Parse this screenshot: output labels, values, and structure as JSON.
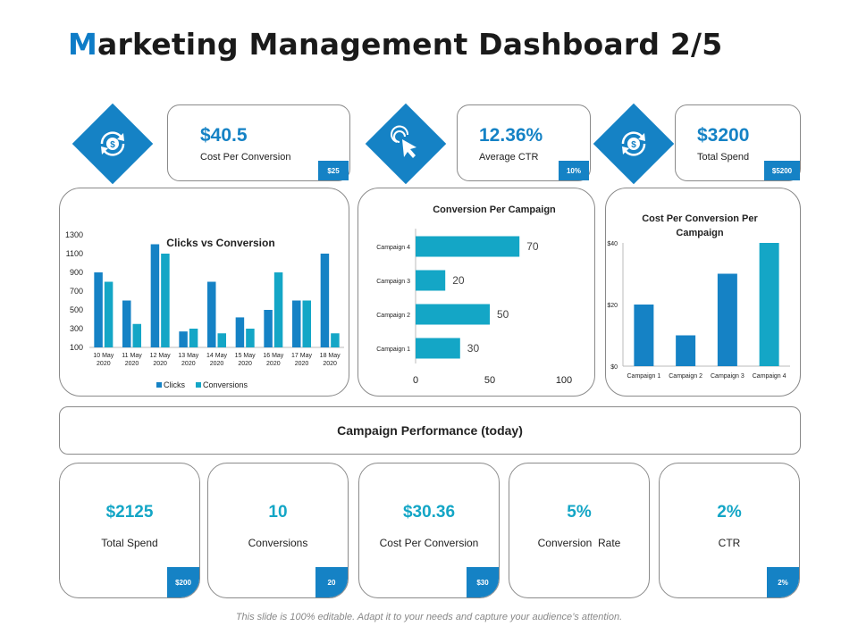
{
  "title": {
    "first_letter": "M",
    "rest": "arketing Management Dashboard 2/5"
  },
  "colors": {
    "primary": "#1582c5",
    "teal": "#14a6c6",
    "border": "#8a8a8a"
  },
  "kpis": [
    {
      "icon": "dollar-refresh-icon",
      "value": "$40.5",
      "label": "Cost Per Conversion",
      "badge": "$25"
    },
    {
      "icon": "cursor-click-icon",
      "value": "12.36%",
      "label": "Average CTR",
      "badge": "10%"
    },
    {
      "icon": "dollar-refresh-icon",
      "value": "$3200",
      "label": "Total Spend",
      "badge": "$5200"
    }
  ],
  "chart_data": [
    {
      "type": "bar",
      "title": "Clicks vs Conversion",
      "categories": [
        "10 May 2020",
        "11 May 2020",
        "12 May 2020",
        "13 May 2020",
        "14 May 2020",
        "15 May 2020",
        "16 May 2020",
        "17 May 2020",
        "18 May 2020"
      ],
      "series": [
        {
          "name": "Clicks",
          "color": "#1582c5",
          "values": [
            900,
            600,
            1200,
            270,
            800,
            420,
            500,
            600,
            1100
          ]
        },
        {
          "name": "Conversions",
          "color": "#14a6c6",
          "values": [
            800,
            350,
            1100,
            300,
            250,
            300,
            900,
            600,
            250
          ]
        }
      ],
      "yticks": [
        "1300",
        "1100",
        "900",
        "700",
        "500",
        "300",
        "100"
      ],
      "ylim": [
        100,
        1300
      ],
      "legend": "bottom"
    },
    {
      "type": "bar",
      "orientation": "horizontal",
      "title": "Conversion Per Campaign",
      "categories": [
        "Campaign 4",
        "Campaign 3",
        "Campaign 2",
        "Campaign 1"
      ],
      "values": [
        70,
        20,
        50,
        30
      ],
      "value_labels": [
        "70",
        "20",
        "50",
        "30"
      ],
      "xticks": [
        "0",
        "50",
        "100"
      ],
      "xlim": [
        0,
        100
      ],
      "color": "#14a6c6"
    },
    {
      "type": "bar",
      "title": "Cost Per Conversion Per Campaign",
      "categories": [
        "Campaign 1",
        "Campaign 2",
        "Campaign 3",
        "Campaign 4"
      ],
      "values": [
        20,
        10,
        30,
        40
      ],
      "colors": [
        "#1582c5",
        "#1582c5",
        "#1582c5",
        "#14a6c6"
      ],
      "yticks": [
        "$40",
        "$20",
        "$0"
      ],
      "ylim": [
        0,
        40
      ]
    }
  ],
  "performance": {
    "title": "Campaign Performance (today)",
    "cards": [
      {
        "value": "$2125",
        "label": "Total Spend",
        "badge": "$200"
      },
      {
        "value": "10",
        "label": "Conversions",
        "badge": "20"
      },
      {
        "value": "$30.36",
        "label": "Cost Per Conversion",
        "badge": "$30"
      },
      {
        "value": "5%",
        "label": "Conversion  Rate",
        "badge": ""
      },
      {
        "value": "2%",
        "label": "CTR",
        "badge": "2%"
      }
    ]
  },
  "footer": "This slide is 100% editable. Adapt it to your needs and capture your audience’s attention."
}
